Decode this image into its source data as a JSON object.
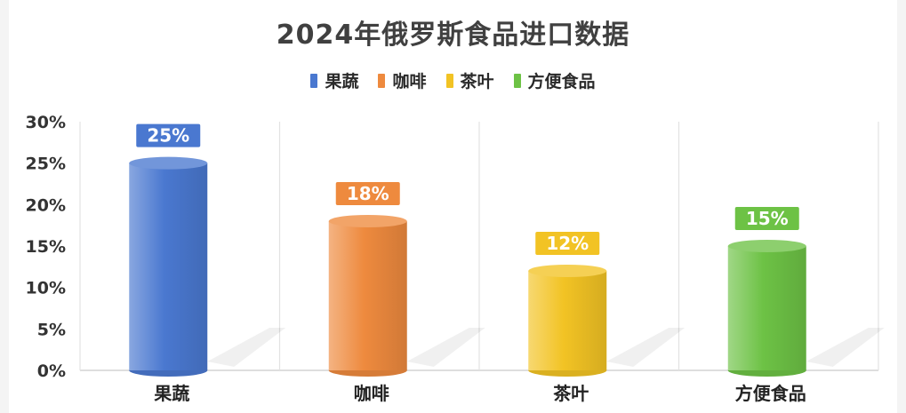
{
  "chart_data": {
    "type": "bar",
    "title": "2024年俄罗斯食品进口数据",
    "categories": [
      "果蔬",
      "咖啡",
      "茶叶",
      "方便食品"
    ],
    "values": [
      25,
      18,
      12,
      15
    ],
    "value_labels": [
      "25%",
      "18%",
      "12%",
      "15%"
    ],
    "colors": [
      "#4a78d0",
      "#ee8a3e",
      "#f2c324",
      "#6dc245"
    ],
    "legend": [
      "果蔬",
      "咖啡",
      "茶叶",
      "方便食品"
    ],
    "legend_position": "top-center",
    "ylim": [
      0,
      30
    ],
    "yticks": [
      "0%",
      "5%",
      "10%",
      "15%",
      "20%",
      "25%",
      "30%"
    ],
    "ytick_values": [
      0,
      5,
      10,
      15,
      20,
      25,
      30
    ],
    "grid": "vertical category separators"
  }
}
